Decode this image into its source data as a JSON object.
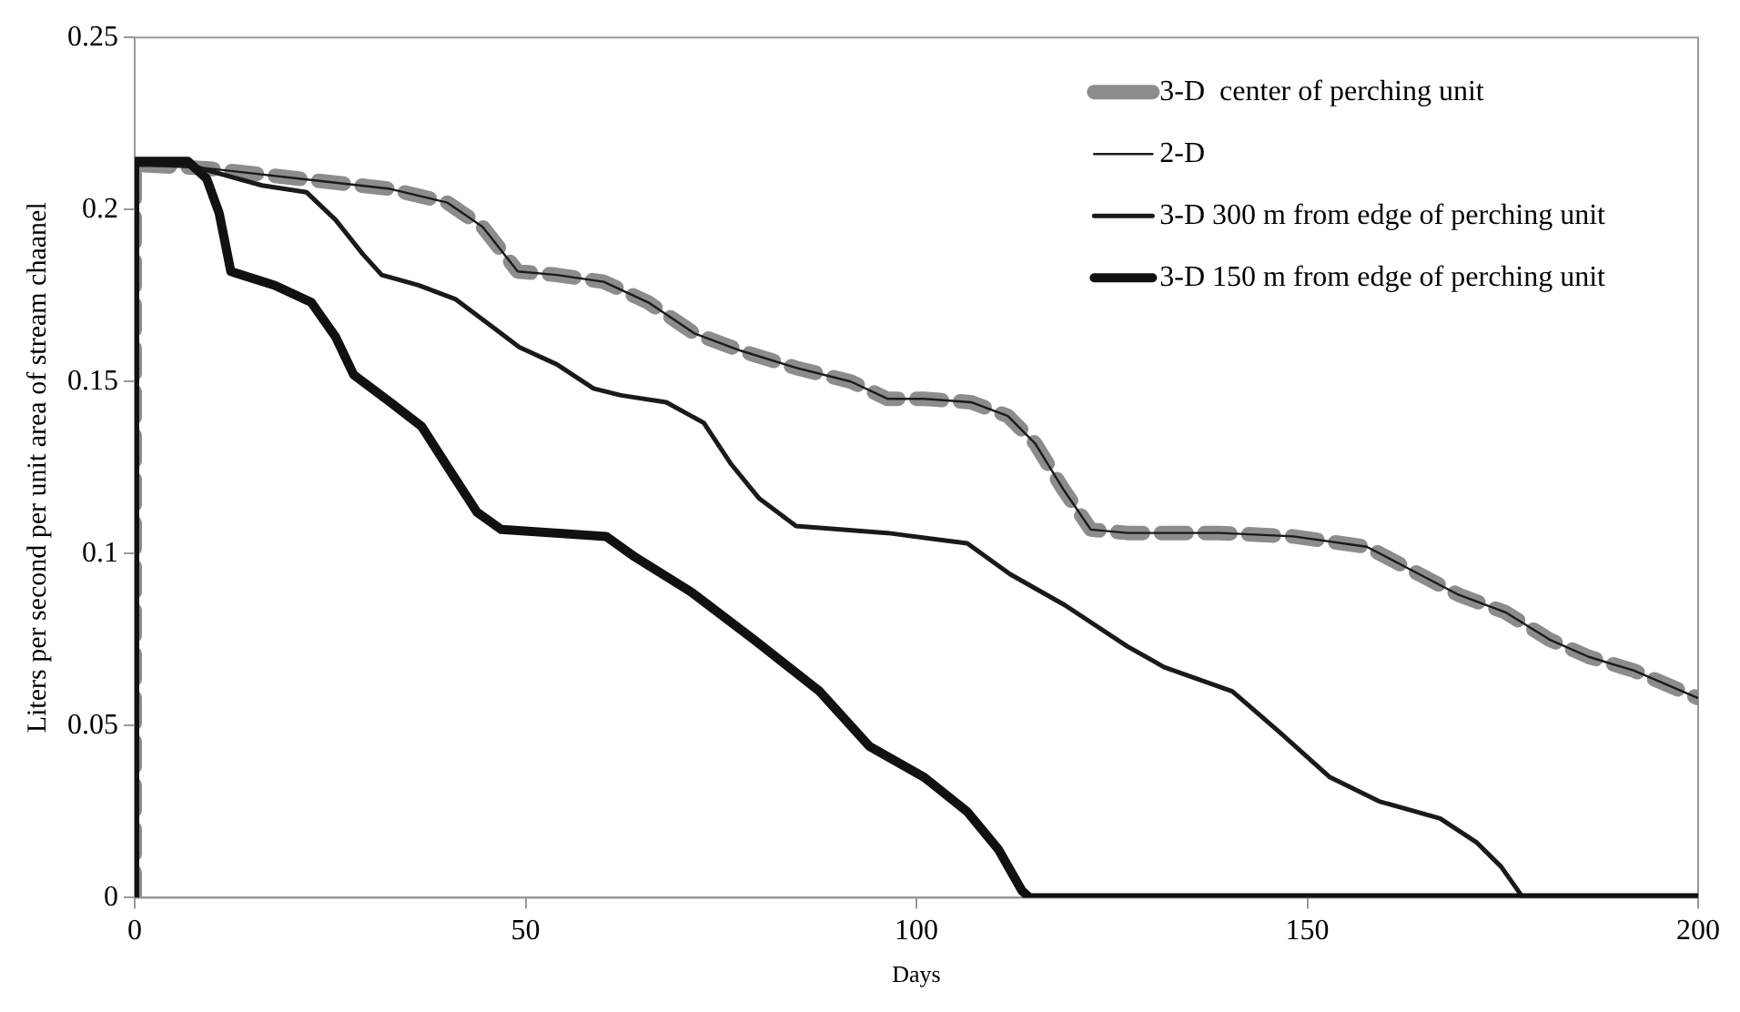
{
  "chart_data": {
    "type": "line",
    "xlabel": "Days",
    "ylabel": "Liters per second per unit area of stream chaanel",
    "xlim": [
      0,
      200
    ],
    "xticks": [
      0,
      50,
      100,
      150,
      200
    ],
    "ylim": [
      0,
      0.25
    ],
    "yticks": [
      0,
      0.05,
      0.1,
      0.15,
      0.2,
      0.25
    ],
    "grid": false,
    "legend": "top right",
    "marker": "none",
    "series": [
      {
        "name": "3-D  center of perching unit",
        "color": "#8c8c8c",
        "line_style": "dashed",
        "x": [
          0,
          0,
          9.2,
          21,
          32.7,
          40,
          44.5,
          49,
          54,
          60,
          65.7,
          71.6,
          77.5,
          84.6,
          91.6,
          96.3,
          101,
          107,
          111.7,
          115.2,
          118.7,
          122.3,
          127,
          138.8,
          148.2,
          157.6,
          163.5,
          169.4,
          175.3,
          181,
          186,
          191.8,
          200
        ],
        "values": [
          0,
          0.213,
          0.212,
          0.209,
          0.206,
          0.202,
          0.195,
          0.182,
          0.181,
          0.179,
          0.173,
          0.164,
          0.159,
          0.154,
          0.15,
          0.145,
          0.145,
          0.144,
          0.14,
          0.132,
          0.119,
          0.107,
          0.106,
          0.106,
          0.105,
          0.102,
          0.095,
          0.088,
          0.083,
          0.075,
          0.07,
          0.066,
          0.058
        ]
      },
      {
        "name": "2-D",
        "color": "#1a1a1a",
        "line_style": "solid",
        "x": [
          0,
          9.2,
          21,
          32.7,
          40,
          44.5,
          49,
          54,
          60,
          65.7,
          71.6,
          77.5,
          84.6,
          91.6,
          96.3,
          101,
          107,
          111.7,
          115.2,
          118.7,
          122.3,
          127,
          138.8,
          148.2,
          157.6,
          163.5,
          169.4,
          175.3,
          181,
          186,
          191.8,
          200
        ],
        "values": [
          0.213,
          0.212,
          0.209,
          0.206,
          0.202,
          0.195,
          0.182,
          0.181,
          0.179,
          0.173,
          0.164,
          0.159,
          0.154,
          0.15,
          0.145,
          0.145,
          0.144,
          0.14,
          0.132,
          0.119,
          0.107,
          0.106,
          0.106,
          0.105,
          0.102,
          0.095,
          0.088,
          0.083,
          0.075,
          0.07,
          0.066,
          0.058
        ]
      },
      {
        "name": "3-D 300 m from edge of perching unit",
        "color": "#1a1a1a",
        "line_style": "solid",
        "x": [
          0,
          6.8,
          16.3,
          22,
          25.7,
          29.2,
          31.6,
          36.3,
          41,
          45.7,
          49.2,
          54,
          58.7,
          62.2,
          68,
          72.8,
          76.3,
          79.9,
          84.6,
          96.3,
          106.5,
          112,
          119,
          127,
          131.7,
          140.4,
          146.5,
          152.9,
          159.2,
          167,
          171.7,
          174.8,
          177.6,
          200
        ],
        "values": [
          0.213,
          0.213,
          0.207,
          0.205,
          0.197,
          0.187,
          0.181,
          0.178,
          0.174,
          0.166,
          0.16,
          0.155,
          0.148,
          0.146,
          0.144,
          0.138,
          0.126,
          0.116,
          0.108,
          0.106,
          0.103,
          0.094,
          0.085,
          0.073,
          0.067,
          0.06,
          0.048,
          0.035,
          0.028,
          0.023,
          0.016,
          0.009,
          0,
          0
        ]
      },
      {
        "name": "3-D 150 m from edge of perching unit",
        "color": "#111111",
        "line_style": "solid",
        "x": [
          0,
          0,
          6.8,
          9.2,
          10.8,
          12.3,
          17.9,
          22.6,
          25.7,
          28,
          32.7,
          36.7,
          39.8,
          43.8,
          46.9,
          60.3,
          64,
          71.1,
          79.2,
          87.6,
          94,
          101,
          106.5,
          110.5,
          113.5,
          114.5,
          200
        ],
        "values": [
          0,
          0.214,
          0.214,
          0.209,
          0.199,
          0.182,
          0.178,
          0.173,
          0.163,
          0.152,
          0.144,
          0.137,
          0.126,
          0.112,
          0.107,
          0.105,
          0.099,
          0.089,
          0.075,
          0.06,
          0.044,
          0.035,
          0.025,
          0.014,
          0.002,
          0,
          0
        ]
      }
    ]
  }
}
